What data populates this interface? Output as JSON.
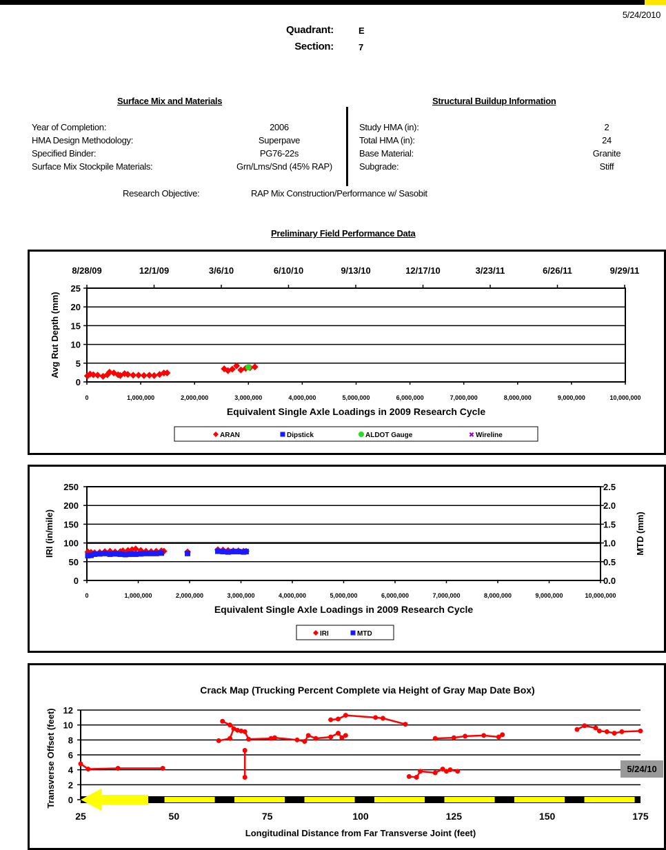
{
  "report_date": "5/24/2010",
  "header": {
    "quadrant_label": "Quadrant:",
    "quadrant_value": "E",
    "section_label": "Section:",
    "section_value": "7"
  },
  "surface_mix": {
    "title": "Surface Mix and Materials",
    "rows": [
      {
        "label": "Year of Completion:",
        "value": "2006"
      },
      {
        "label": "HMA Design Methodology:",
        "value": "Superpave"
      },
      {
        "label": "Specified Binder:",
        "value": "PG76-22s"
      },
      {
        "label": "Surface Mix Stockpile Materials:",
        "value": "Grn/Lms/Snd (45% RAP)"
      }
    ]
  },
  "structural": {
    "title": "Structural Buildup Information",
    "rows": [
      {
        "label": "Study HMA (in):",
        "value": "2"
      },
      {
        "label": "Total HMA (in):",
        "value": "24"
      },
      {
        "label": "Base Material:",
        "value": "Granite"
      },
      {
        "label": "Subgrade:",
        "value": "Stiff"
      }
    ]
  },
  "research_objective": {
    "label": "Research Objective:",
    "value": "RAP Mix Construction/Performance w/ Sasobit"
  },
  "performance_title": "Preliminary Field Performance Data",
  "colors": {
    "red": "#ff0000",
    "blue": "#1a1aff",
    "green": "#22dd22",
    "purple": "#9900cc",
    "yellow": "#ffff00",
    "gray": "#999999"
  },
  "chart_data": [
    {
      "type": "scatter",
      "title": "",
      "xlabel": "Equivalent Single Axle Loadings in 2009 Research Cycle",
      "ylabel": "Avg Rut Depth (mm)",
      "xlim": [
        0,
        10000000
      ],
      "ylim": [
        0,
        25
      ],
      "x_ticks": [
        "0",
        "1,000,000",
        "2,000,000",
        "3,000,000",
        "4,000,000",
        "5,000,000",
        "6,000,000",
        "7,000,000",
        "8,000,000",
        "9,000,000",
        "10,000,000"
      ],
      "y_ticks": [
        "0",
        "5",
        "10",
        "15",
        "20",
        "25"
      ],
      "top_axis_dates": [
        "8/28/09",
        "12/1/09",
        "3/6/10",
        "6/10/10",
        "9/13/10",
        "12/17/10",
        "3/23/11",
        "6/26/11",
        "9/29/11"
      ],
      "gridlines_y": [
        5,
        10,
        15,
        20,
        25
      ],
      "legend": [
        "ARAN",
        "Dipstick",
        "ALDOT Gauge",
        "Wireline"
      ],
      "legend_position": "bottom",
      "series": [
        {
          "name": "ARAN",
          "connected": false,
          "points": [
            [
              10000,
              1.6
            ],
            [
              60000,
              2.1
            ],
            [
              120000,
              1.9
            ],
            [
              200000,
              1.8
            ],
            [
              300000,
              1.5
            ],
            [
              380000,
              1.9
            ],
            [
              420000,
              2.6
            ],
            [
              500000,
              2.4
            ],
            [
              580000,
              1.9
            ],
            [
              620000,
              1.7
            ],
            [
              700000,
              2.2
            ],
            [
              760000,
              2.0
            ],
            [
              860000,
              1.8
            ],
            [
              960000,
              1.8
            ],
            [
              1060000,
              1.7
            ],
            [
              1160000,
              1.8
            ],
            [
              1250000,
              1.7
            ],
            [
              1350000,
              2.0
            ],
            [
              1430000,
              2.4
            ],
            [
              1490000,
              2.4
            ],
            [
              2550000,
              3.5
            ],
            [
              2620000,
              3.0
            ],
            [
              2700000,
              3.4
            ],
            [
              2780000,
              4.3
            ],
            [
              2860000,
              3.2
            ],
            [
              2950000,
              3.6
            ],
            [
              3030000,
              3.8
            ],
            [
              3120000,
              4.0
            ]
          ]
        },
        {
          "name": "Dipstick",
          "connected": false,
          "points": []
        },
        {
          "name": "ALDOT Gauge",
          "connected": false,
          "points": [
            [
              3000000,
              3.9
            ]
          ]
        },
        {
          "name": "Wireline",
          "connected": false,
          "points": []
        }
      ]
    },
    {
      "type": "scatter",
      "title": "",
      "xlabel": "Equivalent Single Axle Loadings in 2009 Research Cycle",
      "ylabel": "IRI (in/mile)",
      "y2label": "MTD (mm)",
      "xlim": [
        0,
        10000000
      ],
      "ylim": [
        0,
        250
      ],
      "y2lim": [
        0,
        2.5
      ],
      "x_ticks": [
        "0",
        "1,000,000",
        "2,000,000",
        "3,000,000",
        "4,000,000",
        "5,000,000",
        "6,000,000",
        "7,000,000",
        "8,000,000",
        "9,000,000",
        "10,000,000"
      ],
      "y_ticks": [
        "0",
        "50",
        "100",
        "150",
        "200",
        "250"
      ],
      "y2_ticks": [
        "0.0",
        "0.5",
        "1.0",
        "1.5",
        "2.0",
        "2.5"
      ],
      "gridlines_y": [
        50,
        100,
        150,
        200,
        250
      ],
      "legend": [
        "IRI",
        "MTD"
      ],
      "legend_position": "bottom",
      "series": [
        {
          "name": "IRI",
          "axis": "left",
          "points": [
            [
              20000,
              76
            ],
            [
              80000,
              75
            ],
            [
              150000,
              74
            ],
            [
              250000,
              75
            ],
            [
              350000,
              77
            ],
            [
              450000,
              78
            ],
            [
              550000,
              76
            ],
            [
              650000,
              77
            ],
            [
              700000,
              79
            ],
            [
              800000,
              80
            ],
            [
              880000,
              82
            ],
            [
              950000,
              84
            ],
            [
              1050000,
              80
            ],
            [
              1150000,
              78
            ],
            [
              1250000,
              77
            ],
            [
              1350000,
              78
            ],
            [
              1450000,
              79
            ],
            [
              1500000,
              78
            ],
            [
              1960000,
              76
            ],
            [
              2550000,
              82
            ],
            [
              2650000,
              81
            ],
            [
              2750000,
              80
            ],
            [
              2850000,
              79
            ],
            [
              2950000,
              79
            ],
            [
              3050000,
              78
            ],
            [
              3100000,
              78
            ]
          ]
        },
        {
          "name": "MTD",
          "axis": "right",
          "points": [
            [
              20000,
              0.66
            ],
            [
              80000,
              0.67
            ],
            [
              150000,
              0.7
            ],
            [
              250000,
              0.71
            ],
            [
              350000,
              0.72
            ],
            [
              450000,
              0.7
            ],
            [
              550000,
              0.71
            ],
            [
              650000,
              0.7
            ],
            [
              750000,
              0.69
            ],
            [
              850000,
              0.7
            ],
            [
              950000,
              0.7
            ],
            [
              1050000,
              0.71
            ],
            [
              1150000,
              0.72
            ],
            [
              1250000,
              0.72
            ],
            [
              1350000,
              0.72
            ],
            [
              1450000,
              0.73
            ],
            [
              1960000,
              0.72
            ],
            [
              2550000,
              0.78
            ],
            [
              2650000,
              0.77
            ],
            [
              2750000,
              0.76
            ],
            [
              2850000,
              0.77
            ],
            [
              2950000,
              0.77
            ],
            [
              3050000,
              0.76
            ],
            [
              3100000,
              0.77
            ]
          ]
        }
      ]
    },
    {
      "type": "line",
      "title": "Crack Map (Trucking Percent Complete via Height of Gray Map Date Box)",
      "xlabel": "Longitudinal Distance from Far Transverse Joint (feet)",
      "ylabel": "Transverse Offset (feet)",
      "xlim": [
        25,
        175
      ],
      "ylim": [
        0,
        12
      ],
      "x_ticks": [
        "25",
        "50",
        "75",
        "100",
        "125",
        "150",
        "175"
      ],
      "y_ticks": [
        "0",
        "2",
        "4",
        "6",
        "8",
        "10",
        "12"
      ],
      "gridlines_y": [
        2,
        4,
        6,
        8,
        10,
        12
      ],
      "map_date_box": "5/24/10",
      "polylines": [
        [
          [
            25,
            4.8
          ],
          [
            27,
            4.1
          ],
          [
            35,
            4.2
          ],
          [
            47,
            4.2
          ]
        ],
        [
          [
            63,
            10.5
          ],
          [
            65,
            10.0
          ],
          [
            67,
            9.3
          ],
          [
            69,
            9.1
          ],
          [
            70,
            8.1
          ],
          [
            76,
            8.2
          ],
          [
            77,
            8.3
          ],
          [
            83,
            8.0
          ],
          [
            85,
            7.8
          ],
          [
            86,
            8.6
          ],
          [
            88,
            8.2
          ],
          [
            92,
            8.4
          ],
          [
            94,
            8.9
          ],
          [
            95,
            8.3
          ],
          [
            96,
            8.6
          ]
        ],
        [
          [
            62,
            7.9
          ],
          [
            65,
            8.2
          ],
          [
            66,
            9.5
          ],
          [
            68,
            9.2
          ]
        ],
        [
          [
            69,
            6.6
          ],
          [
            69,
            3.0
          ]
        ],
        [
          [
            92,
            10.7
          ],
          [
            94,
            10.8
          ],
          [
            96,
            11.3
          ],
          [
            104,
            11.0
          ],
          [
            106,
            10.9
          ],
          [
            112,
            10.1
          ]
        ],
        [
          [
            113,
            3.1
          ],
          [
            115,
            3.0
          ],
          [
            116,
            3.8
          ],
          [
            120,
            3.6
          ],
          [
            122,
            4.1
          ],
          [
            123,
            3.8
          ],
          [
            124,
            4.0
          ],
          [
            126,
            3.8
          ]
        ],
        [
          [
            120,
            8.2
          ],
          [
            125,
            8.3
          ],
          [
            128,
            8.5
          ],
          [
            133,
            8.6
          ],
          [
            137,
            8.4
          ],
          [
            138,
            8.7
          ]
        ],
        [
          [
            158,
            9.4
          ],
          [
            160,
            9.9
          ],
          [
            163,
            9.6
          ],
          [
            164,
            9.2
          ],
          [
            166,
            9.1
          ],
          [
            168,
            8.9
          ],
          [
            170,
            9.1
          ],
          [
            175,
            9.2
          ]
        ]
      ],
      "joint_arrow": "left",
      "dashed_baseline": true
    }
  ]
}
